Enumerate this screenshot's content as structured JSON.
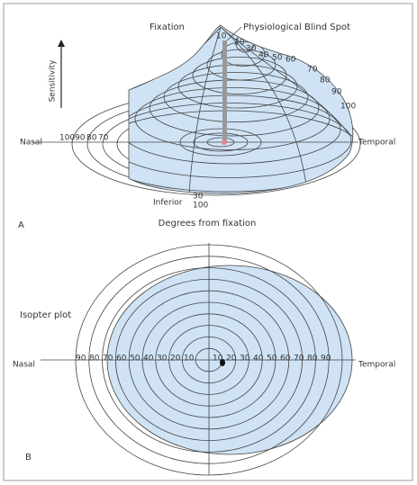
{
  "panel_a": {
    "label": "A",
    "fixation": "Fixation",
    "blind_spot": "Physiological Blind Spot",
    "sensitivity": "Sensitivity",
    "nasal": "Nasal",
    "temporal": "Temporal",
    "inferior": "Inferior",
    "axis_caption": "Degrees from fixation",
    "temporal_degrees": [
      10,
      20,
      30,
      40,
      50,
      60,
      70,
      80,
      90,
      100
    ],
    "nasal_degrees": [
      100,
      90,
      80,
      70
    ],
    "inferior_degrees": [
      30,
      100
    ]
  },
  "panel_b": {
    "label": "B",
    "title": "Isopter plot",
    "nasal": "Nasal",
    "temporal": "Temporal",
    "nasal_degrees": [
      90,
      80,
      70,
      60,
      50,
      40,
      30,
      20,
      10
    ],
    "temporal_degrees": [
      10,
      20,
      30,
      40,
      50,
      60,
      70,
      80,
      90
    ]
  }
}
